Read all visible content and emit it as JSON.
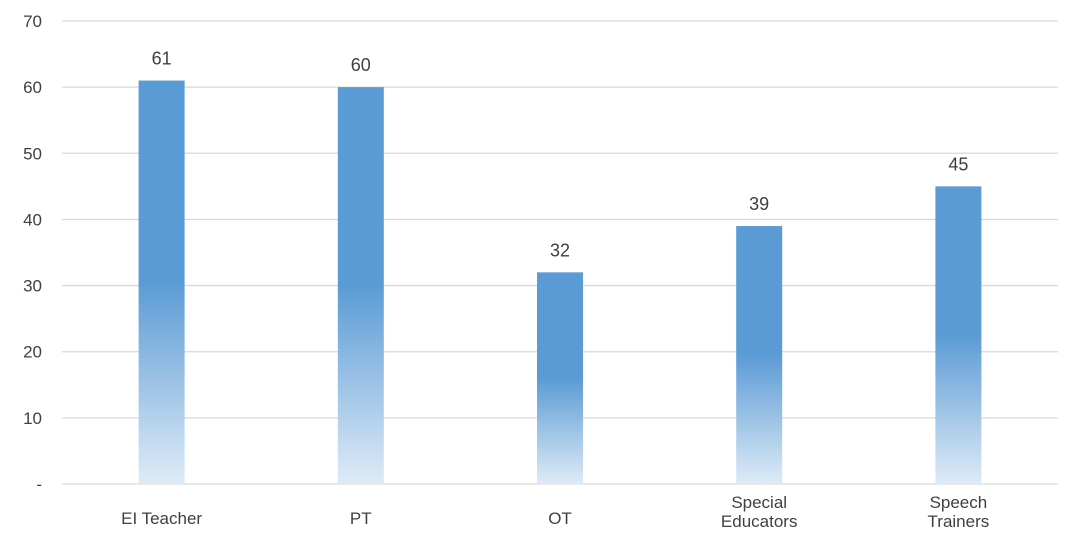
{
  "chart_data": {
    "type": "bar",
    "title": "",
    "xlabel": "",
    "ylabel": "",
    "categories": [
      [
        "EI Teacher"
      ],
      [
        "PT"
      ],
      [
        "OT"
      ],
      [
        "Special",
        "Educators"
      ],
      [
        "Speech",
        "Trainers"
      ]
    ],
    "values": [
      61,
      60,
      32,
      39,
      45
    ],
    "ylim": [
      0,
      70
    ],
    "yticks": [
      0,
      10,
      20,
      30,
      40,
      50,
      60,
      70
    ],
    "ytick_labels": [
      "-",
      "10",
      "20",
      "30",
      "40",
      "50",
      "60",
      "70"
    ],
    "data_labels": [
      "61",
      "60",
      "32",
      "39",
      "45"
    ],
    "grid": true,
    "legend": "none",
    "colors": {
      "bar": "#5b9bd5",
      "bar_fade": "#deebf7",
      "grid": "#d9d9d9",
      "text": "#404040"
    }
  }
}
